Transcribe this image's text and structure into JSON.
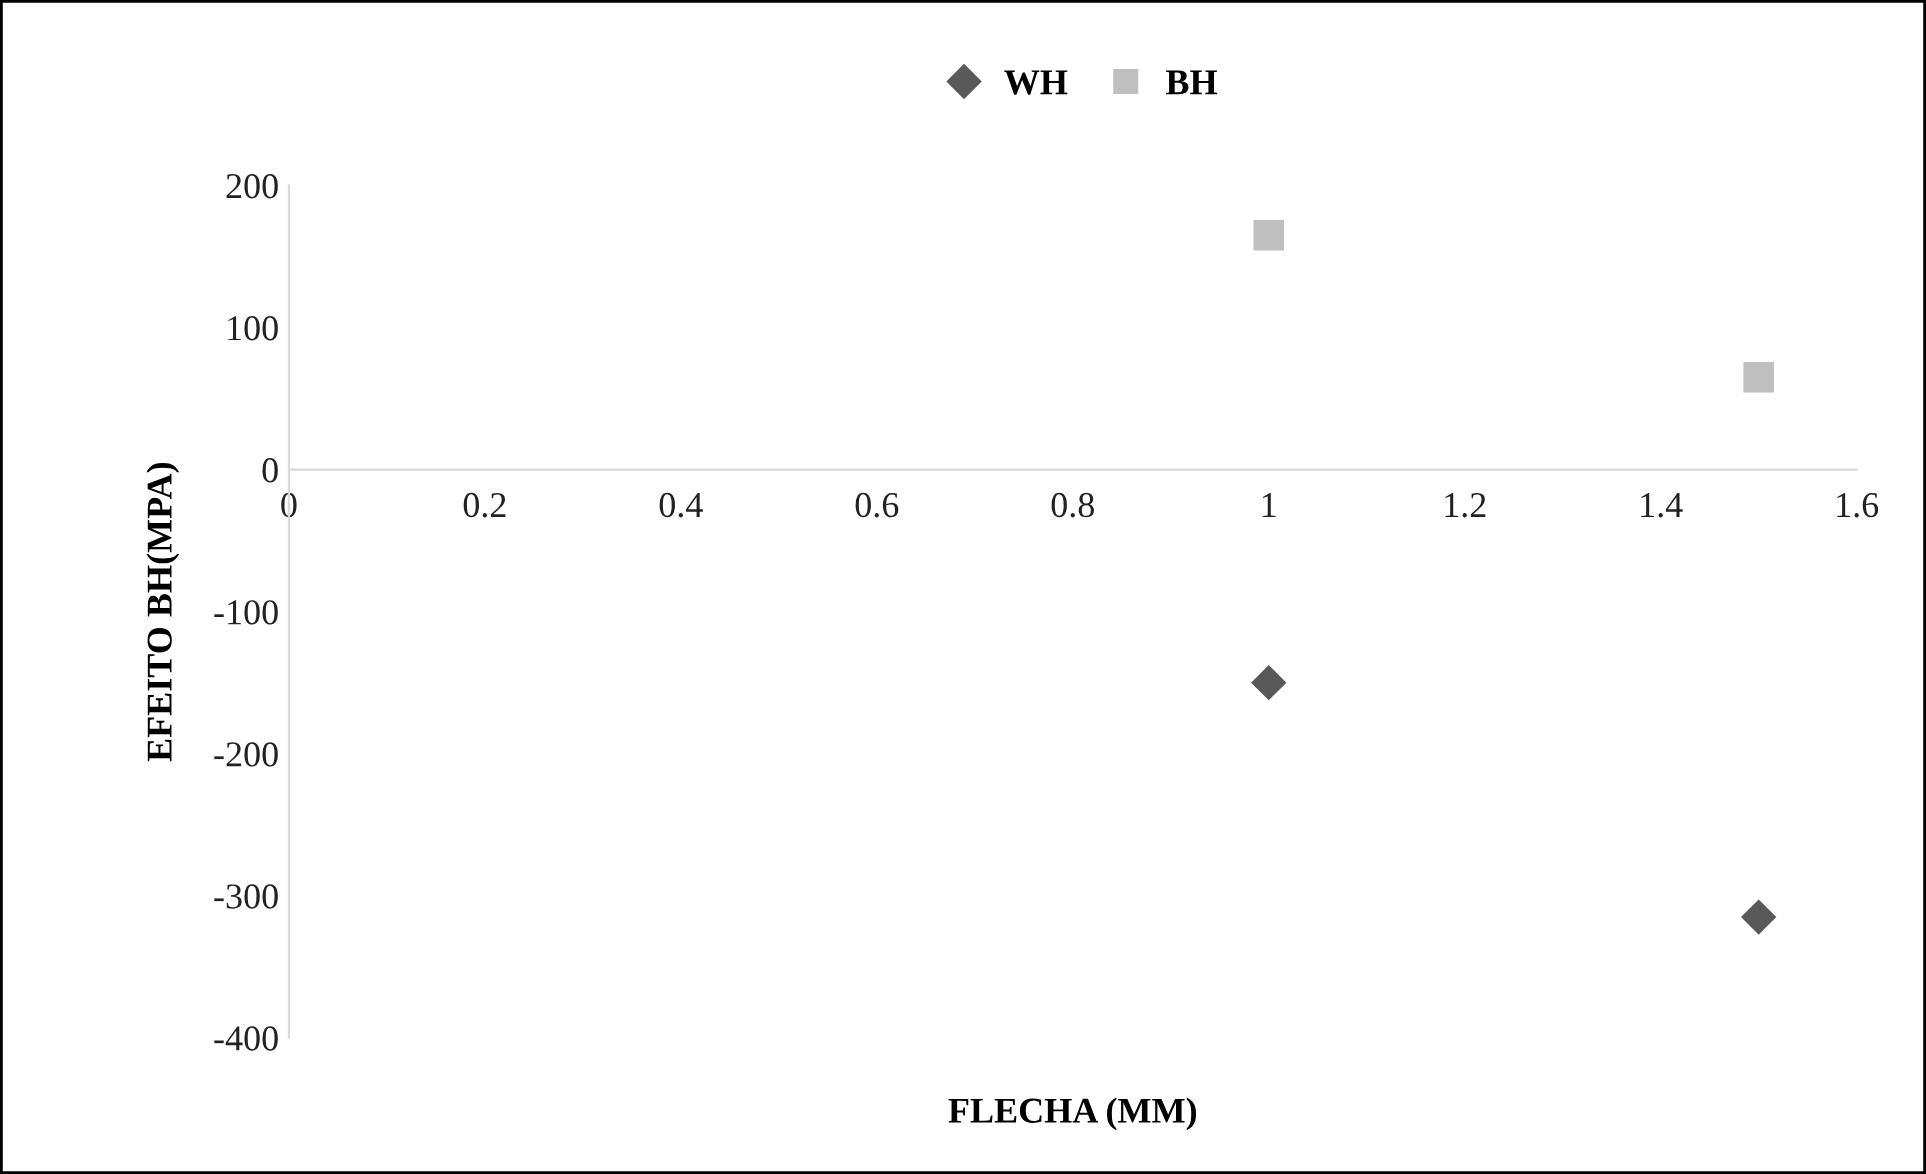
{
  "chart_data": {
    "type": "scatter",
    "xlabel": "FLECHA (MM)",
    "ylabel": "EFEITO BH(MPA)",
    "x": [
      1,
      1.5
    ],
    "series": [
      {
        "name": "WH",
        "color": "#595959",
        "marker": "diamond",
        "values": [
          -150,
          -315
        ]
      },
      {
        "name": "BH",
        "color": "#bfbfbf",
        "marker": "square",
        "values": [
          165,
          65
        ]
      }
    ],
    "xlim": [
      0,
      1.6
    ],
    "xticks": [
      0,
      0.2,
      0.4,
      0.6,
      0.8,
      1,
      1.2,
      1.4,
      1.6
    ],
    "ylim": [
      -400,
      200
    ],
    "yticks": [
      -400,
      -300,
      -200,
      -100,
      0,
      100,
      200
    ],
    "grid": false,
    "legend": "top"
  }
}
